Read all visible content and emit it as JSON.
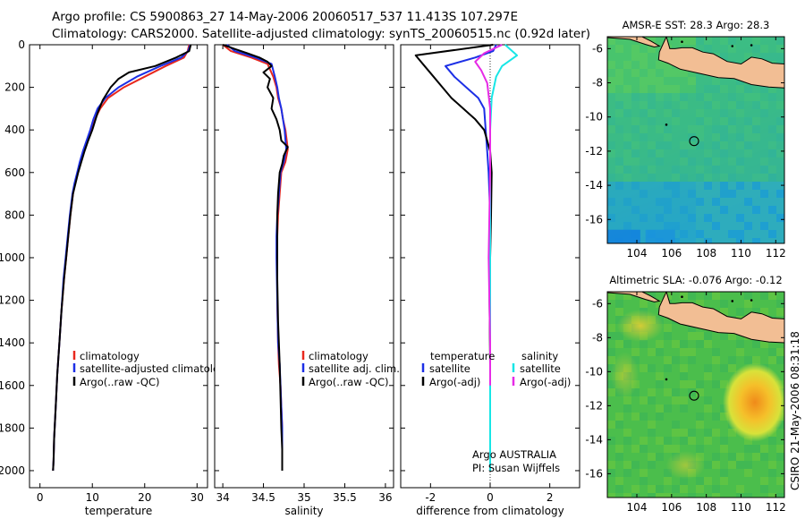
{
  "header": {
    "line1": "Argo profile: CS 5900863_27 14-May-2006 20060517_537 11.413S 107.297E",
    "line2": "Climatology: CARS2000. Satellite-adjusted climatology: synTS_20060515.nc (0.92d later)"
  },
  "side_label": "CSIRO 21-May-2006 08:31:18",
  "credits": {
    "line1": "Argo AUSTRALIA",
    "line2": "PI: Susan Wijffels"
  },
  "colors": {
    "climatology": "#e8281e",
    "satellite": "#1c2fe6",
    "argo": "#000000",
    "salinity_satellite": "#17e6e6",
    "salinity_argo": "#e62be6",
    "land": "#f2be94"
  },
  "chart_data": [
    {
      "type": "line",
      "name": "temperature-profile",
      "xlabel": "temperature",
      "ylabel": "",
      "xlim": [
        -2,
        32
      ],
      "ylim": [
        2080,
        0
      ],
      "xticks": [
        0,
        10,
        20,
        30
      ],
      "yticks": [
        0,
        200,
        400,
        600,
        800,
        1000,
        1200,
        1400,
        1600,
        1800,
        2000
      ],
      "legend": [
        "climatology",
        "satellite-adjusted climatology",
        "Argo(..raw -QC)"
      ],
      "series": [
        {
          "name": "climatology",
          "x": [
            28.5,
            28.2,
            27.5,
            24,
            20,
            16,
            13,
            11.5,
            10.5,
            9.8,
            9,
            8.3,
            7.7,
            7.2,
            6.7,
            6.3,
            5.8,
            5.4,
            5,
            4.6,
            4.1,
            3.7,
            3.3,
            3,
            2.7,
            2.6,
            2.5
          ],
          "y": [
            0,
            30,
            60,
            100,
            150,
            200,
            250,
            300,
            350,
            400,
            450,
            500,
            550,
            600,
            650,
            700,
            800,
            900,
            1000,
            1100,
            1250,
            1400,
            1550,
            1700,
            1850,
            1950,
            2000
          ]
        },
        {
          "name": "satellite-adjusted climatology",
          "x": [
            28.7,
            28.3,
            27,
            23,
            18.5,
            15,
            12.5,
            11,
            10.2,
            9.6,
            8.9,
            8.2,
            7.6,
            7.1,
            6.6,
            6.2,
            5.7,
            5.3,
            4.9,
            4.5,
            4.1,
            3.7,
            3.3,
            3,
            2.7,
            2.6,
            2.5
          ],
          "y": [
            0,
            30,
            60,
            100,
            150,
            200,
            250,
            300,
            350,
            400,
            450,
            500,
            550,
            600,
            650,
            700,
            800,
            900,
            1000,
            1100,
            1250,
            1400,
            1550,
            1700,
            1850,
            1950,
            2000
          ]
        },
        {
          "name": "Argo(..raw -QC)",
          "x": [
            28.8,
            28.5,
            26,
            22,
            17,
            15,
            13.5,
            12,
            11,
            10,
            9.2,
            8.5,
            7.9,
            7.3,
            6.8,
            6.3,
            5.8,
            5.4,
            5,
            4.6,
            4.1,
            3.7,
            3.3,
            3,
            2.7,
            2.6,
            2.5
          ],
          "y": [
            0,
            30,
            60,
            100,
            130,
            160,
            200,
            260,
            320,
            400,
            450,
            500,
            550,
            600,
            650,
            700,
            800,
            900,
            1000,
            1100,
            1250,
            1400,
            1550,
            1700,
            1850,
            1950,
            2000
          ]
        }
      ]
    },
    {
      "type": "line",
      "name": "salinity-profile",
      "xlabel": "salinity",
      "xlim": [
        33.9,
        36.1
      ],
      "ylim": [
        2080,
        0
      ],
      "xticks": [
        34,
        34.5,
        35,
        35.5,
        36
      ],
      "legend": [
        "climatology",
        "satellite adj. clim.",
        "Argo(..raw -QC)"
      ],
      "series": [
        {
          "name": "climatology",
          "x": [
            34.0,
            34.1,
            34.35,
            34.55,
            34.62,
            34.66,
            34.68,
            34.72,
            34.74,
            34.77,
            34.8,
            34.77,
            34.72,
            34.7,
            34.68,
            34.67,
            34.67,
            34.67,
            34.68,
            34.69,
            34.71,
            34.72,
            34.73,
            34.73,
            34.73
          ],
          "y": [
            0,
            30,
            60,
            90,
            150,
            200,
            250,
            300,
            350,
            400,
            490,
            550,
            600,
            700,
            800,
            900,
            1000,
            1200,
            1400,
            1500,
            1600,
            1700,
            1800,
            1900,
            2000
          ]
        },
        {
          "name": "satellite adj. clim.",
          "x": [
            34.05,
            34.15,
            34.4,
            34.6,
            34.64,
            34.67,
            34.69,
            34.72,
            34.74,
            34.76,
            34.78,
            34.75,
            34.71,
            34.69,
            34.67,
            34.66,
            34.66,
            34.67,
            34.68,
            34.7,
            34.71,
            34.72,
            34.73,
            34.73,
            34.73
          ],
          "y": [
            0,
            30,
            60,
            90,
            150,
            200,
            250,
            300,
            350,
            400,
            490,
            550,
            600,
            700,
            800,
            900,
            1000,
            1200,
            1400,
            1500,
            1600,
            1700,
            1800,
            1900,
            2000
          ]
        },
        {
          "name": "Argo(..raw -QC)",
          "x": [
            34.0,
            34.15,
            34.3,
            34.45,
            34.55,
            34.6,
            34.5,
            34.58,
            34.55,
            34.62,
            34.6,
            34.66,
            34.7,
            34.72,
            34.8,
            34.75,
            34.73,
            34.7,
            34.68,
            34.67,
            34.67,
            34.67,
            34.68,
            34.7,
            34.71,
            34.72,
            34.73,
            34.73
          ],
          "y": [
            0,
            20,
            40,
            60,
            80,
            100,
            130,
            160,
            200,
            250,
            300,
            350,
            400,
            450,
            480,
            520,
            560,
            600,
            700,
            800,
            900,
            1100,
            1300,
            1500,
            1650,
            1800,
            1900,
            2000
          ]
        }
      ]
    },
    {
      "type": "line",
      "name": "difference-from-climatology",
      "xlabel": "difference from climatology",
      "xlim": [
        -3,
        3
      ],
      "ylim": [
        2080,
        0
      ],
      "xticks": [
        -2,
        0,
        2
      ],
      "legend_temperature": {
        "title": "temperature",
        "items": [
          "satellite",
          "Argo(-adj)"
        ]
      },
      "legend_salinity": {
        "title": "salinity",
        "items": [
          "satellite",
          "Argo(-adj)"
        ]
      },
      "series": [
        {
          "name": "temperature satellite",
          "x": [
            0.2,
            0.1,
            -0.5,
            -1.5,
            -1.2,
            -0.8,
            -0.4,
            -0.2,
            -0.15,
            -0.1,
            -0.05,
            0,
            0,
            0,
            0,
            0,
            0,
            0
          ],
          "y": [
            0,
            30,
            60,
            100,
            150,
            200,
            250,
            300,
            400,
            500,
            600,
            800,
            1000,
            1200,
            1400,
            1600,
            1800,
            2000
          ]
        },
        {
          "name": "temperature Argo(-adj)",
          "x": [
            0.1,
            -2.5,
            -2.2,
            -1.9,
            -1.6,
            -1.3,
            -0.9,
            -0.5,
            -0.2,
            -0.1,
            0,
            0.05,
            0.03,
            0,
            -0.02,
            0,
            0,
            0
          ],
          "y": [
            0,
            50,
            100,
            150,
            200,
            250,
            300,
            350,
            400,
            450,
            500,
            600,
            800,
            1000,
            1200,
            1500,
            1800,
            2000
          ]
        },
        {
          "name": "salinity satellite",
          "x": [
            0.5,
            0.9,
            0.4,
            0.2,
            0.05,
            0,
            0,
            0,
            0,
            0,
            0,
            0
          ],
          "y": [
            0,
            50,
            100,
            150,
            250,
            400,
            600,
            800,
            1000,
            1400,
            1800,
            2000
          ]
        },
        {
          "name": "salinity Argo(-adj)",
          "x": [
            0.4,
            -0.2,
            -0.5,
            -0.3,
            -0.1,
            0,
            0,
            -0.05,
            0,
            0
          ],
          "y": [
            0,
            40,
            80,
            120,
            180,
            300,
            600,
            1000,
            1400,
            1600
          ]
        }
      ]
    },
    {
      "type": "heatmap",
      "name": "amsr-sst-map",
      "title": "AMSR-E SST: 28.3 Argo: 28.3",
      "xlim": [
        102.3,
        112.5
      ],
      "ylim": [
        -17.4,
        -5.3
      ],
      "xticks": [
        104,
        106,
        108,
        110,
        112
      ],
      "yticks": [
        -6,
        -8,
        -10,
        -12,
        -14,
        -16
      ],
      "argo_position": {
        "lon": 107.297,
        "lat": -11.413
      }
    },
    {
      "type": "heatmap",
      "name": "altimetric-sla-map",
      "title": "Altimetric SLA: -0.076 Argo: -0.12",
      "xlim": [
        102.3,
        112.5
      ],
      "ylim": [
        -17.4,
        -5.3
      ],
      "xticks": [
        104,
        106,
        108,
        110,
        112
      ],
      "yticks": [
        -6,
        -8,
        -10,
        -12,
        -14,
        -16
      ],
      "argo_position": {
        "lon": 107.297,
        "lat": -11.413
      }
    }
  ]
}
